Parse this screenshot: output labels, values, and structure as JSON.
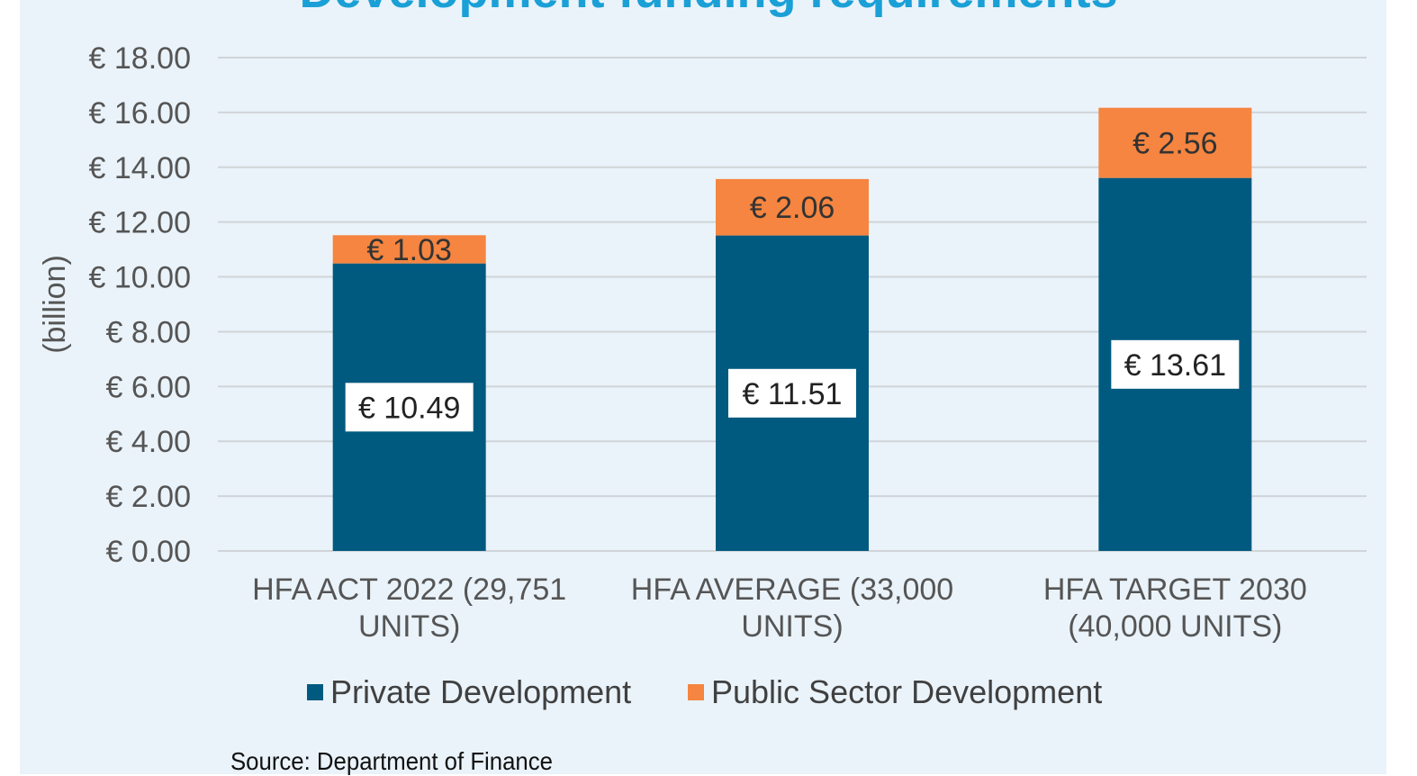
{
  "chart_data": {
    "type": "bar",
    "stacked": true,
    "title": "Development funding requirements",
    "ylabel": "(billion)",
    "xlabel": "",
    "ylim": [
      0,
      18
    ],
    "y_ticks": [
      "€ 0.00",
      "€ 2.00",
      "€ 4.00",
      "€ 6.00",
      "€ 8.00",
      "€ 10.00",
      "€ 12.00",
      "€ 14.00",
      "€ 16.00",
      "€ 18.00"
    ],
    "y_tick_values": [
      0,
      2,
      4,
      6,
      8,
      10,
      12,
      14,
      16,
      18
    ],
    "categories": [
      [
        "HFA ACT 2022 (29,751",
        "UNITS)"
      ],
      [
        "HFA AVERAGE (33,000",
        "UNITS)"
      ],
      [
        "HFA TARGET 2030",
        "(40,000 UNITS)"
      ]
    ],
    "series": [
      {
        "name": "Private Development",
        "color": "#005a7f",
        "values": [
          10.49,
          11.51,
          13.61
        ],
        "labels": [
          "€ 10.49",
          "€ 11.51",
          "€ 13.61"
        ]
      },
      {
        "name": "Public Sector Development",
        "color": "#f58540",
        "values": [
          1.03,
          2.06,
          2.56
        ],
        "labels": [
          "€ 1.03",
          "€ 2.06",
          "€ 2.56"
        ]
      }
    ],
    "grid": true,
    "legend_position": "bottom"
  },
  "source_note": "Source: Department of Finance"
}
